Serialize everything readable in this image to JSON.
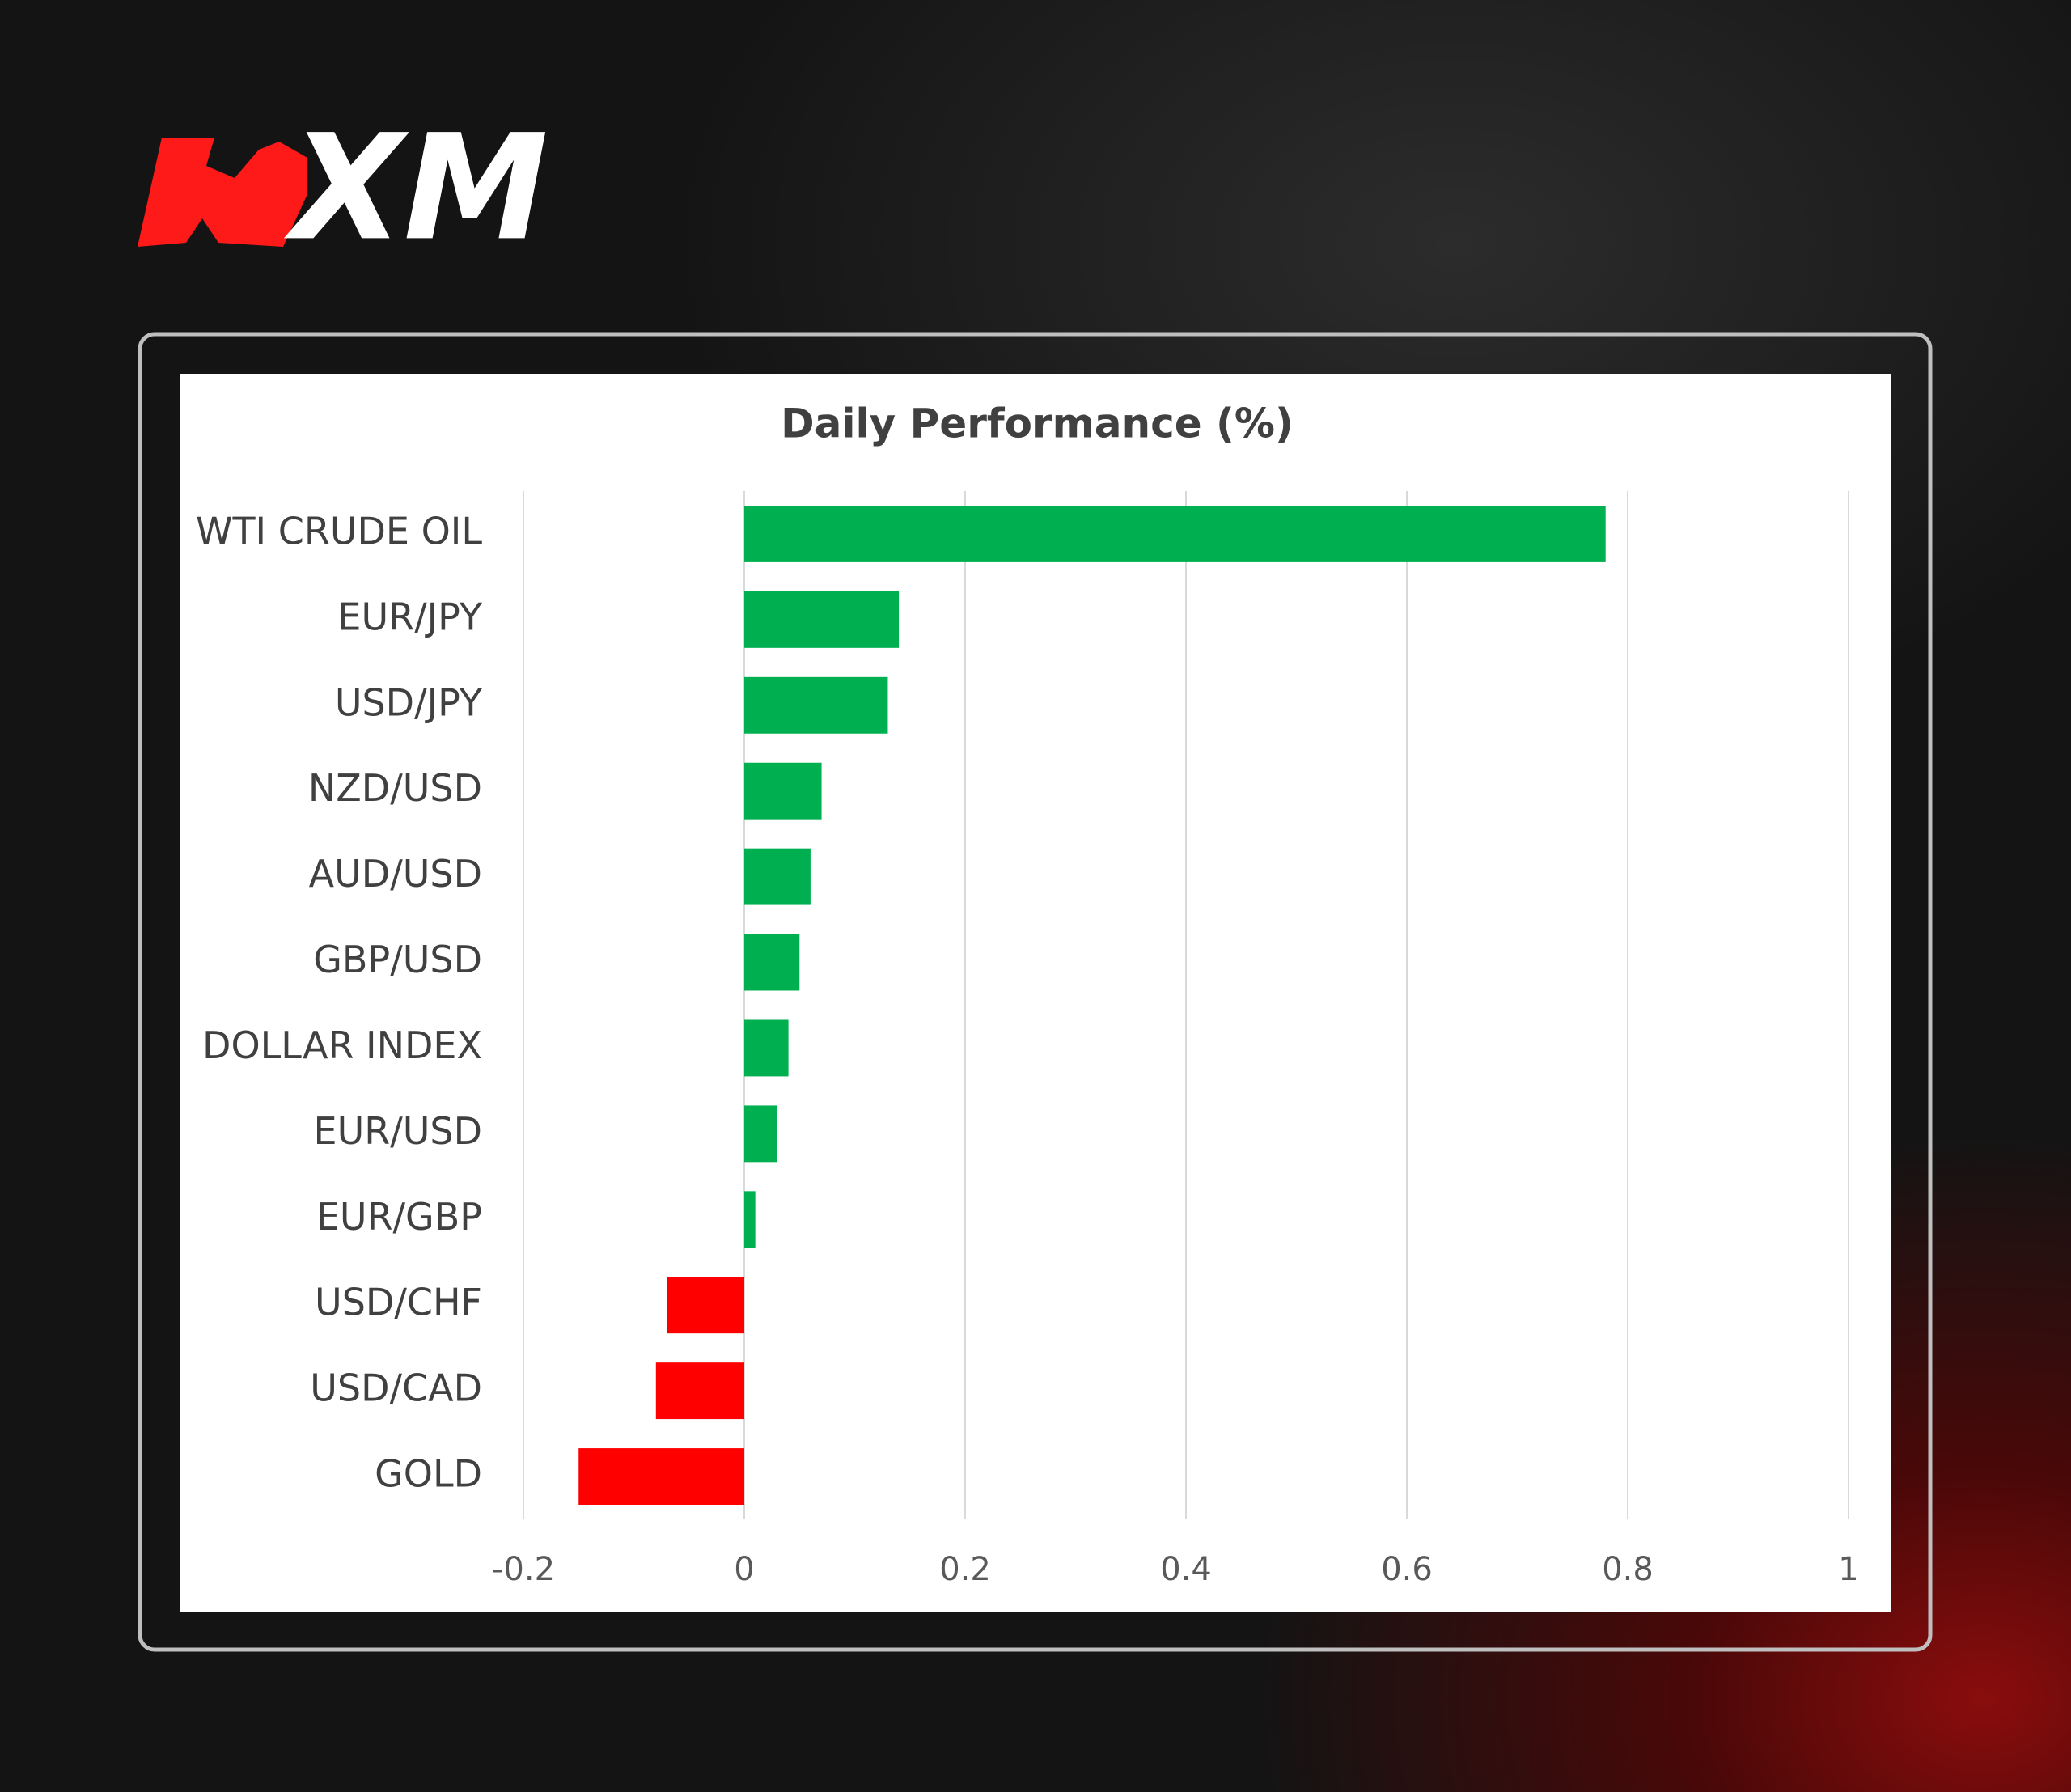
{
  "logo": "XM",
  "chart_data": {
    "type": "barh",
    "title": "Daily Performance (%)",
    "categories": [
      "WTI CRUDE OIL",
      "EUR/JPY",
      "USD/JPY",
      "NZD/USD",
      "AUD/USD",
      "GBP/USD",
      "DOLLAR INDEX",
      "EUR/USD",
      "EUR/GBP",
      "USD/CHF",
      "USD/CAD",
      "GOLD"
    ],
    "values": [
      0.78,
      0.14,
      0.13,
      0.07,
      0.06,
      0.05,
      0.04,
      0.03,
      0.01,
      -0.07,
      -0.08,
      -0.15
    ],
    "colors": [
      "#00b050",
      "#00b050",
      "#00b050",
      "#00b050",
      "#00b050",
      "#00b050",
      "#00b050",
      "#00b050",
      "#00b050",
      "#ff0000",
      "#ff0000",
      "#ff0000"
    ],
    "xlim": [
      -0.2,
      1
    ],
    "xticks": [
      -0.2,
      0,
      0.2,
      0.4,
      0.6,
      0.8,
      1
    ],
    "grid": true
  }
}
